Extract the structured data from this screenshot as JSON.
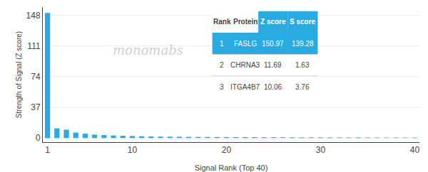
{
  "chart_data": {
    "type": "bar",
    "x": [
      1,
      2,
      3,
      4,
      5,
      6,
      7,
      8,
      9,
      10,
      11,
      12,
      13,
      14,
      15,
      16,
      17,
      18,
      19,
      20,
      21,
      22,
      23,
      24,
      25,
      26,
      27,
      28,
      29,
      30,
      31,
      32,
      33,
      34,
      35,
      36,
      37,
      38,
      39,
      40
    ],
    "values": [
      150.97,
      11.69,
      10.06,
      6.5,
      5.2,
      4.1,
      3.5,
      3.0,
      2.7,
      2.4,
      2.1,
      1.9,
      1.7,
      1.6,
      1.5,
      1.4,
      1.3,
      1.25,
      1.2,
      1.15,
      1.1,
      1.05,
      1.0,
      0.95,
      0.9,
      0.85,
      0.8,
      0.78,
      0.76,
      0.74,
      0.72,
      0.7,
      0.68,
      0.66,
      0.64,
      0.62,
      0.6,
      0.58,
      0.56,
      0.54
    ],
    "color": "#29ABE2",
    "xlabel": "Signal Rank (Top 40)",
    "ylabel": "Strength of Signal (Z score)",
    "xlim": [
      0.5,
      40.5
    ],
    "xticks": [
      1,
      10,
      20,
      30,
      40
    ],
    "ylim": [
      -5,
      158
    ],
    "yticks": [
      0,
      37,
      74,
      111,
      148
    ],
    "grid": true,
    "annotations": [
      "monomabs"
    ],
    "table": {
      "headers": [
        "Rank",
        "Protein",
        "Z score",
        "S score"
      ],
      "rows": [
        [
          "1",
          "FASLG",
          "150.97",
          "139.28"
        ],
        [
          "2",
          "CHRNA3",
          "11.69",
          "1.63"
        ],
        [
          "3",
          "ITGA4B7",
          "10.06",
          "3.76"
        ]
      ]
    }
  }
}
